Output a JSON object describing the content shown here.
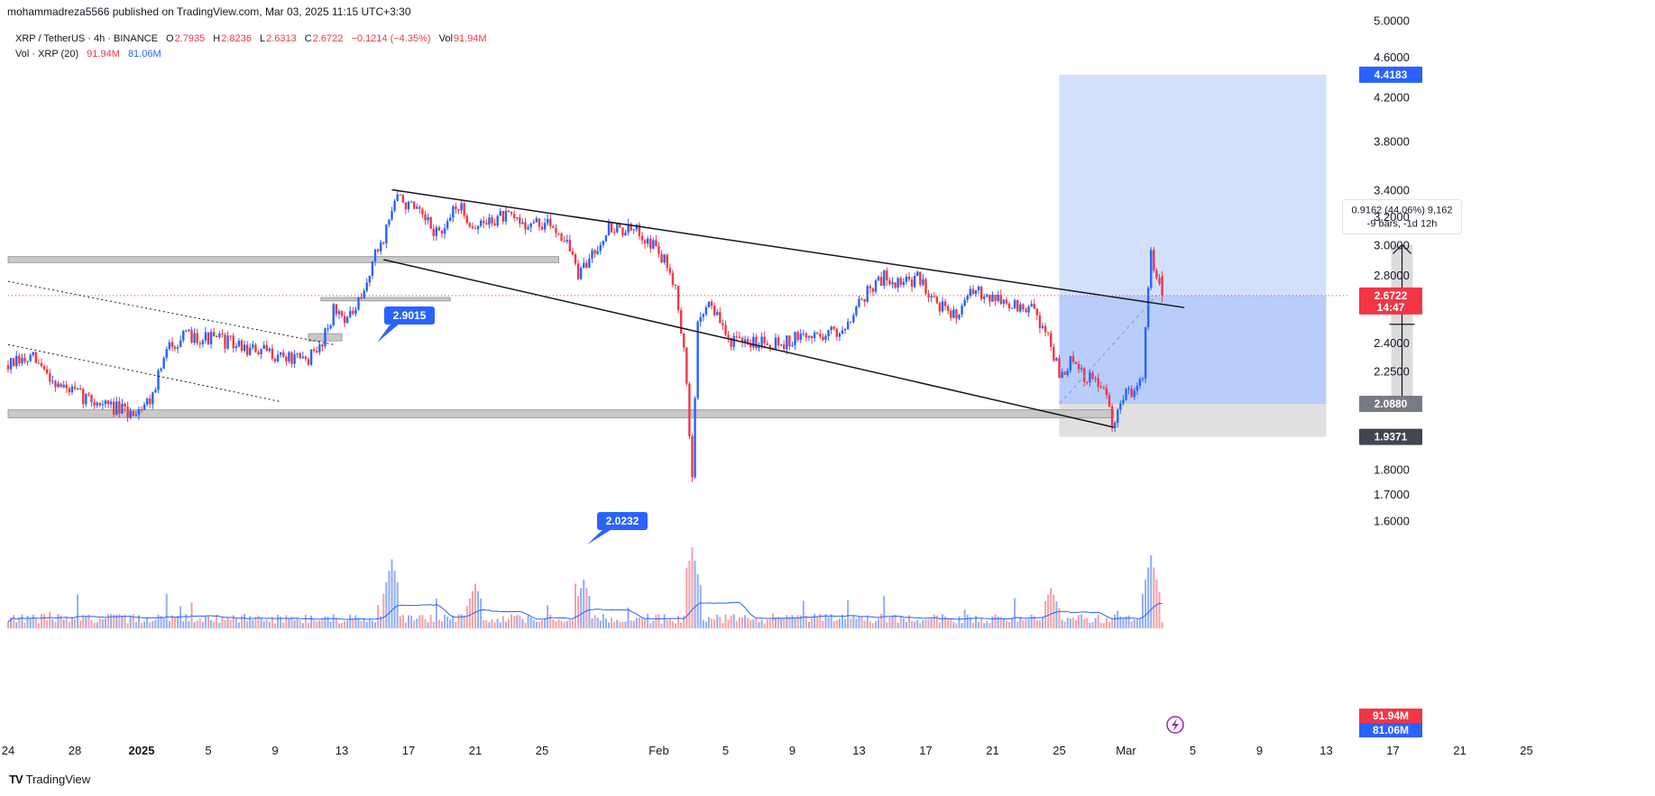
{
  "attribution": "mohammadreza5566 published on TradingView.com, Mar 03, 2025 11:15 UTC+3:30",
  "legend": {
    "symbol": "XRP / TetherUS · 4h · BINANCE",
    "open_label": "O",
    "open": "2.7935",
    "high_label": "H",
    "high": "2.8236",
    "low_label": "L",
    "low": "2.6313",
    "close_label": "C",
    "close": "2.6722",
    "change": "−0.1214 (−4.35%)",
    "vol_label": "Vol",
    "vol": "91.94M",
    "vol_ind_label": "Vol · XRP (20)",
    "vol_ind_value": "91.94M",
    "vol_ind_ma": "81.06M"
  },
  "footer": {
    "logo": "TV",
    "brand": "TradingView"
  },
  "colors": {
    "up": "#2962ff",
    "down": "#f23645",
    "target_zone": "#d3e0fc",
    "stop_zone": "#e0e0e0",
    "last_price": "#f23645"
  },
  "chart_data": {
    "type": "candlestick",
    "symbol": "XRP / TetherUS",
    "interval": "4h",
    "exchange": "BINANCE",
    "y_scale": "log",
    "ylim": [
      1.45,
      5.1
    ],
    "y_ticks": [
      "5.0000",
      "4.6000",
      "4.2000",
      "3.8000",
      "3.4000",
      "3.2000",
      "3.0000",
      "2.8000",
      "2.4000",
      "2.2500",
      "1.8000",
      "1.7000",
      "1.6000"
    ],
    "x_labels": [
      "24",
      "28",
      "2025",
      "5",
      "9",
      "13",
      "17",
      "21",
      "25",
      "Feb",
      "5",
      "9",
      "13",
      "17",
      "21",
      "25",
      "Mar",
      "5",
      "9",
      "13",
      "17",
      "21",
      "25"
    ],
    "x_label_dates": [
      "2024-12-24",
      "2024-12-28",
      "2025-01-01",
      "2025-01-05",
      "2025-01-09",
      "2025-01-13",
      "2025-01-17",
      "2025-01-21",
      "2025-01-25",
      "2025-02-01",
      "2025-02-05",
      "2025-02-09",
      "2025-02-13",
      "2025-02-17",
      "2025-02-21",
      "2025-02-25",
      "2025-03-01",
      "2025-03-05",
      "2025-03-09",
      "2025-03-13",
      "2025-03-17",
      "2025-03-21",
      "2025-03-25"
    ],
    "price_path": [
      [
        "2024-12-24T00:00",
        2.28
      ],
      [
        "2024-12-25T12:00",
        2.31
      ],
      [
        "2024-12-27T00:00",
        2.18
      ],
      [
        "2024-12-28T12:00",
        2.12
      ],
      [
        "2024-12-30T00:00",
        2.08
      ],
      [
        "2024-12-31T06:00",
        2.04
      ],
      [
        "2025-01-01T12:00",
        2.11
      ],
      [
        "2025-01-02T18:00",
        2.4
      ],
      [
        "2025-01-04T00:00",
        2.44
      ],
      [
        "2025-01-06T00:00",
        2.41
      ],
      [
        "2025-01-07T12:00",
        2.36
      ],
      [
        "2025-01-09T00:00",
        2.34
      ],
      [
        "2025-01-10T12:00",
        2.3
      ],
      [
        "2025-01-11T12:00",
        2.34
      ],
      [
        "2025-01-12T12:00",
        2.58
      ],
      [
        "2025-01-13T12:00",
        2.54
      ],
      [
        "2025-01-14T06:00",
        2.65
      ],
      [
        "2025-01-14T18:00",
        2.86
      ],
      [
        "2025-01-15T12:00",
        3.05
      ],
      [
        "2025-01-16T06:00",
        3.35
      ],
      [
        "2025-01-17T00:00",
        3.28
      ],
      [
        "2025-01-18T12:00",
        3.1
      ],
      [
        "2025-01-19T06:00",
        3.08
      ],
      [
        "2025-01-19T18:00",
        3.3
      ],
      [
        "2025-01-21T00:00",
        3.12
      ],
      [
        "2025-01-22T12:00",
        3.2
      ],
      [
        "2025-01-24T00:00",
        3.15
      ],
      [
        "2025-01-25T18:00",
        3.13
      ],
      [
        "2025-01-26T12:00",
        3.02
      ],
      [
        "2025-01-27T06:00",
        2.78
      ],
      [
        "2025-01-28T00:00",
        2.95
      ],
      [
        "2025-01-29T00:00",
        3.12
      ],
      [
        "2025-01-30T00:00",
        3.1
      ],
      [
        "2025-01-31T00:00",
        3.08
      ],
      [
        "2025-02-01T00:00",
        2.95
      ],
      [
        "2025-02-02T00:00",
        2.75
      ],
      [
        "2025-02-02T12:00",
        2.35
      ],
      [
        "2025-02-03T00:00",
        1.76
      ],
      [
        "2025-02-03T08:00",
        2.5
      ],
      [
        "2025-02-04T00:00",
        2.65
      ],
      [
        "2025-02-05T00:00",
        2.44
      ],
      [
        "2025-02-06T00:00",
        2.38
      ],
      [
        "2025-02-07T00:00",
        2.42
      ],
      [
        "2025-02-08T12:00",
        2.4
      ],
      [
        "2025-02-09T12:00",
        2.43
      ],
      [
        "2025-02-11T00:00",
        2.45
      ],
      [
        "2025-02-12T00:00",
        2.47
      ],
      [
        "2025-02-12T12:00",
        2.56
      ],
      [
        "2025-02-13T12:00",
        2.7
      ],
      [
        "2025-02-14T12:00",
        2.79
      ],
      [
        "2025-02-15T12:00",
        2.74
      ],
      [
        "2025-02-16T12:00",
        2.78
      ],
      [
        "2025-02-17T12:00",
        2.66
      ],
      [
        "2025-02-18T12:00",
        2.54
      ],
      [
        "2025-02-19T12:00",
        2.66
      ],
      [
        "2025-02-20T12:00",
        2.7
      ],
      [
        "2025-02-21T12:00",
        2.64
      ],
      [
        "2025-02-22T12:00",
        2.6
      ],
      [
        "2025-02-23T12:00",
        2.58
      ],
      [
        "2025-02-24T12:00",
        2.4
      ],
      [
        "2025-02-25T00:00",
        2.22
      ],
      [
        "2025-02-25T18:00",
        2.3
      ],
      [
        "2025-02-26T12:00",
        2.21
      ],
      [
        "2025-02-27T06:00",
        2.2
      ],
      [
        "2025-02-27T18:00",
        2.15
      ],
      [
        "2025-02-28T06:00",
        1.95
      ],
      [
        "2025-02-28T18:00",
        2.12
      ],
      [
        "2025-03-01T12:00",
        2.16
      ],
      [
        "2025-03-02T00:00",
        2.25
      ],
      [
        "2025-03-02T12:00",
        2.95
      ],
      [
        "2025-03-02T20:00",
        2.8
      ],
      [
        "2025-03-03T04:00",
        2.6722
      ]
    ],
    "volume": {
      "label": "Vol · XRP (20)",
      "last": "91.94M",
      "ma": "81.06M",
      "spikes": [
        [
          "2025-01-16T00:00",
          0.85
        ],
        [
          "2025-01-21T00:00",
          0.55
        ],
        [
          "2025-01-27T12:00",
          0.6
        ],
        [
          "2025-02-03T00:00",
          1.0
        ],
        [
          "2025-02-24T12:00",
          0.5
        ],
        [
          "2025-03-02T12:00",
          0.9
        ]
      ]
    },
    "horizontal_zones": [
      {
        "low": 2.0232,
        "high": 2.06,
        "start": "2024-12-24",
        "end": "2025-02-28T06:00",
        "label": "2.0232"
      },
      {
        "low": 2.88,
        "high": 2.92,
        "start": "2024-12-24",
        "end": "2025-01-26",
        "label": "2.9015"
      },
      {
        "low": 2.64,
        "high": 2.66,
        "start": "2025-01-11T18:00",
        "end": "2025-01-19T12:00"
      },
      {
        "low": 2.41,
        "high": 2.45,
        "start": "2025-01-11",
        "end": "2025-01-13"
      }
    ],
    "trendlines": [
      {
        "from": [
          "2025-01-16T00:00",
          3.4
        ],
        "to": [
          "2025-03-04T12:00",
          2.6
        ],
        "style": "solid"
      },
      {
        "from": [
          "2025-01-15T12:00",
          2.9
        ],
        "to": [
          "2025-02-28T06:00",
          1.98
        ],
        "style": "solid"
      },
      {
        "from": [
          "2024-12-24T00:00",
          2.76
        ],
        "to": [
          "2025-01-12T12:00",
          2.39
        ],
        "style": "dotted"
      },
      {
        "from": [
          "2024-12-24T00:00",
          2.39
        ],
        "to": [
          "2025-01-09T06:00",
          2.1
        ],
        "style": "dotted"
      }
    ],
    "position": {
      "type": "long",
      "entry": 2.6722,
      "target": 4.4183,
      "stop": 2.088,
      "stop_low": 1.9371,
      "start": "2025-02-25T00:00",
      "end": "2025-03-13T00:00"
    },
    "measure": {
      "text_line1": "0.9162 (44.06%) 9,162",
      "text_line2": "-9 bars, -1d 12h",
      "from_price": 2.088,
      "to_price": 3.0,
      "at": "2025-03-17T00:00"
    },
    "price_labels": [
      {
        "value": "4.4183",
        "kind": "target"
      },
      {
        "value": "2.6722",
        "sub": "14:47",
        "kind": "last"
      },
      {
        "value": "2.0880",
        "kind": "stop"
      },
      {
        "value": "1.9371",
        "kind": "low"
      }
    ],
    "volume_labels": [
      "91.94M",
      "81.06M"
    ]
  }
}
